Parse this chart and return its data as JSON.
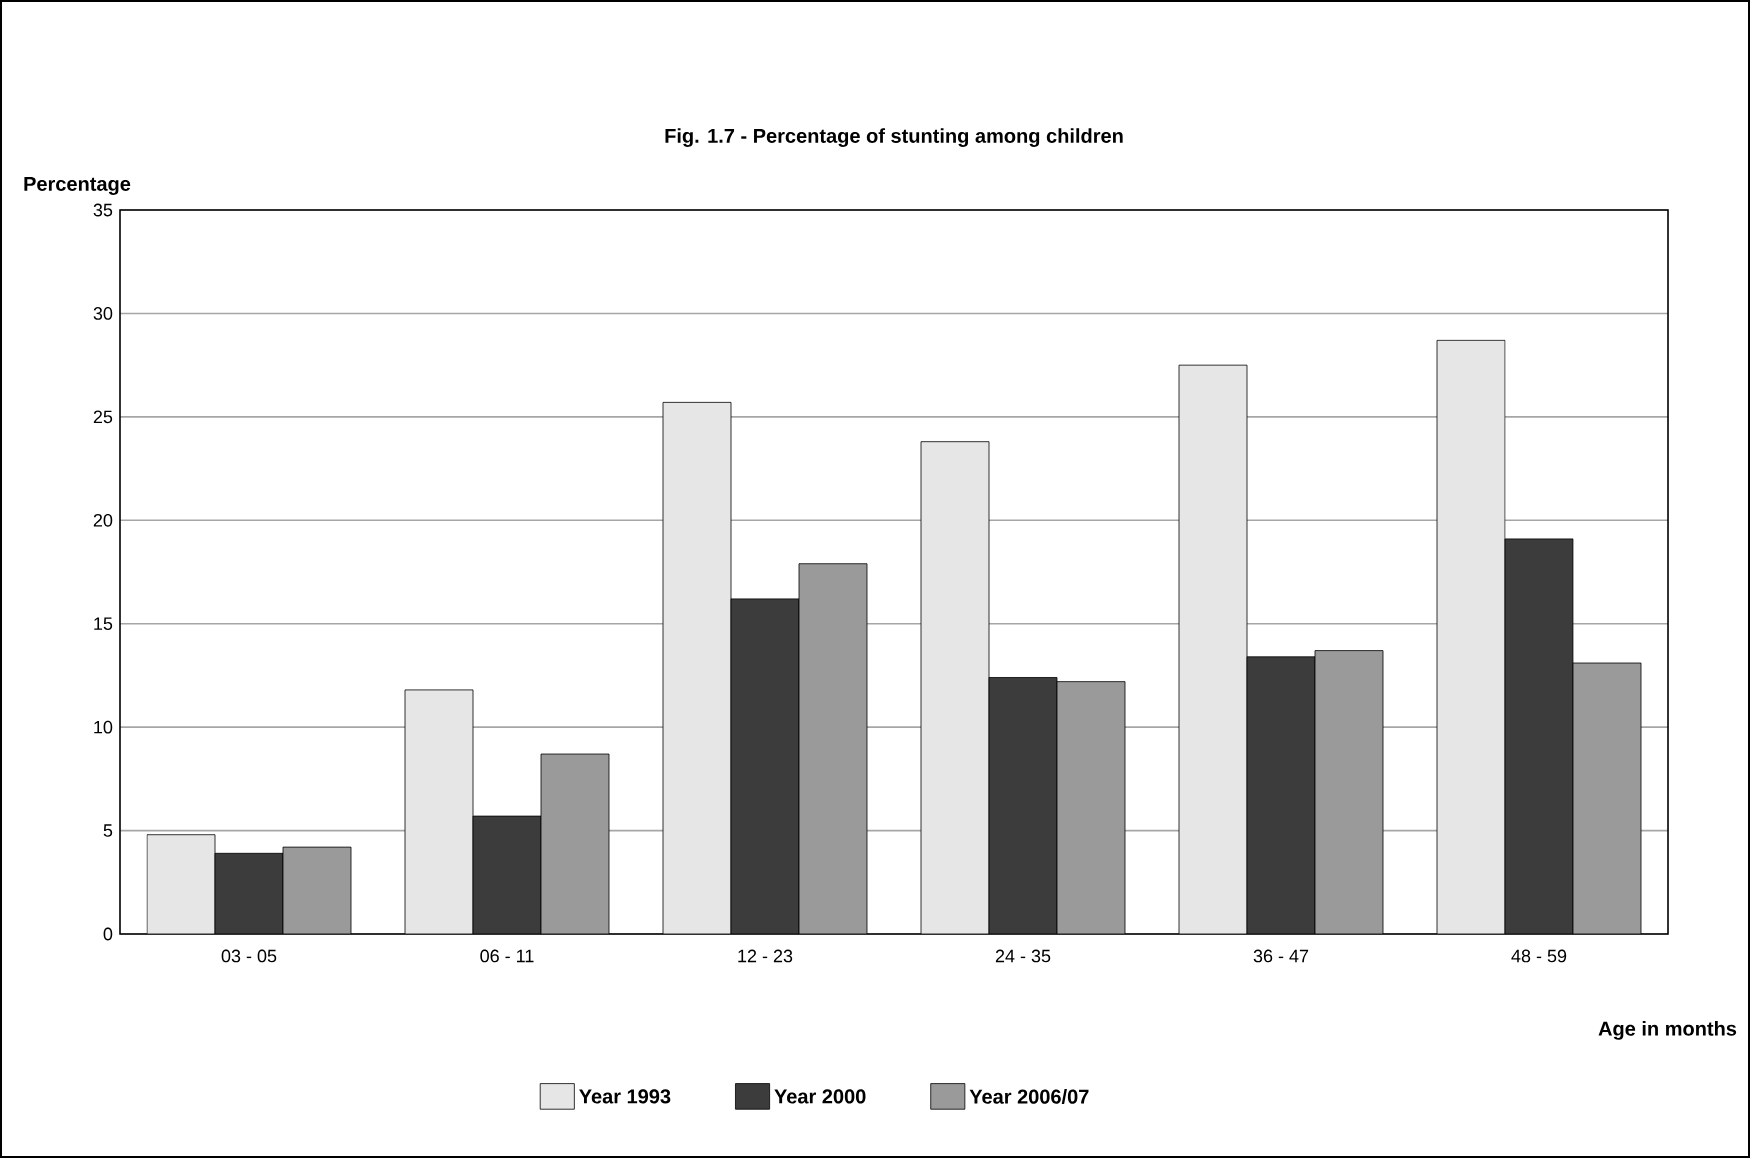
{
  "chart_data": {
    "type": "bar",
    "title": "Fig. 1.7 - Percentage of stunting among children",
    "ylabel": "Percentage",
    "xlabel": "Age in months",
    "categories": [
      "03 - 05",
      "06 - 11",
      "12 - 23",
      "24 - 35",
      "36 - 47",
      "48 - 59"
    ],
    "series": [
      {
        "name": "Year 1993",
        "color": "#e6e6e6",
        "values": [
          4.8,
          11.8,
          25.7,
          23.8,
          27.5,
          28.7
        ]
      },
      {
        "name": "Year 2000",
        "color": "#3c3c3c",
        "values": [
          3.9,
          5.7,
          16.2,
          12.4,
          13.4,
          19.1
        ]
      },
      {
        "name": "Year 2006/07",
        "color": "#9a9a9a",
        "values": [
          4.2,
          8.7,
          17.9,
          12.2,
          13.7,
          13.1
        ]
      }
    ],
    "ylim": [
      0,
      35
    ],
    "yticks": [
      0,
      5,
      10,
      15,
      20,
      25,
      30,
      35
    ],
    "grid": "y",
    "legend": "bottom"
  }
}
